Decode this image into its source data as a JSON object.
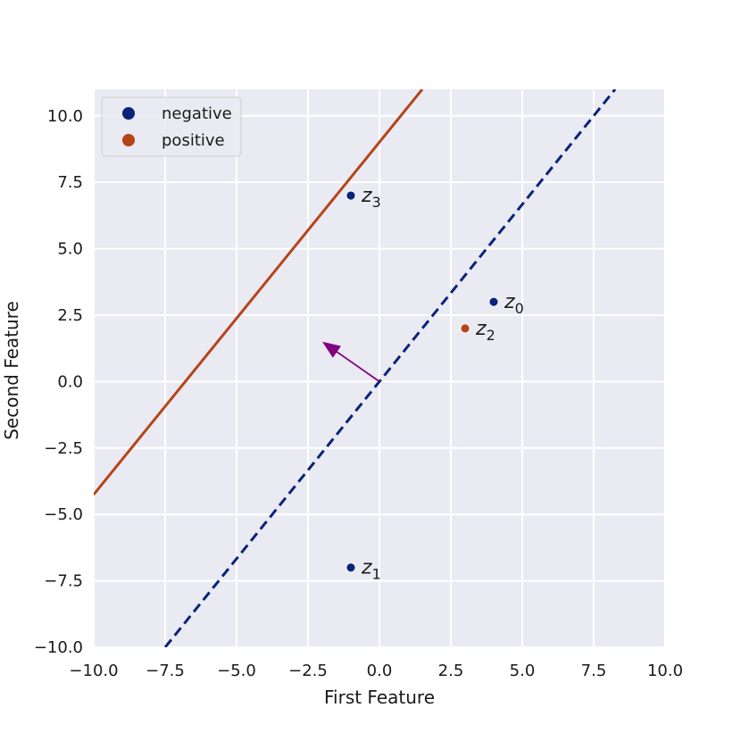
{
  "chart_data": {
    "type": "scatter",
    "title": "",
    "xlabel": "First Feature",
    "ylabel": "Second Feature",
    "xlim": [
      -10,
      10
    ],
    "ylim": [
      -10,
      11
    ],
    "grid": true,
    "legend_position": "top-left",
    "xticks": [
      {
        "v": -10,
        "label": "−10.0"
      },
      {
        "v": -7.5,
        "label": "−7.5"
      },
      {
        "v": -5,
        "label": "−5.0"
      },
      {
        "v": -2.5,
        "label": "−2.5"
      },
      {
        "v": 0,
        "label": "0.0"
      },
      {
        "v": 2.5,
        "label": "2.5"
      },
      {
        "v": 5,
        "label": "5.0"
      },
      {
        "v": 7.5,
        "label": "7.5"
      },
      {
        "v": 10,
        "label": "10.0"
      }
    ],
    "yticks": [
      {
        "v": -10,
        "label": "−10.0"
      },
      {
        "v": -7.5,
        "label": "−7.5"
      },
      {
        "v": -5,
        "label": "−5.0"
      },
      {
        "v": -2.5,
        "label": "−2.5"
      },
      {
        "v": 0,
        "label": "0.0"
      },
      {
        "v": 2.5,
        "label": "2.5"
      },
      {
        "v": 5,
        "label": "5.0"
      },
      {
        "v": 7.5,
        "label": "7.5"
      },
      {
        "v": 10,
        "label": "10.0"
      }
    ],
    "series": [
      {
        "name": "negative",
        "color": "#0a237a",
        "points": [
          {
            "x": 4,
            "y": 3,
            "base": "z",
            "sub": "0"
          },
          {
            "x": -1,
            "y": -7,
            "base": "z",
            "sub": "1"
          },
          {
            "x": -1,
            "y": 7,
            "base": "z",
            "sub": "3"
          }
        ]
      },
      {
        "name": "positive",
        "color": "#b5441a",
        "points": [
          {
            "x": 3,
            "y": 2,
            "base": "z",
            "sub": "2"
          }
        ]
      }
    ],
    "lines": [
      {
        "style": "solid",
        "color": "#b5441a",
        "points": [
          [
            -10,
            -4.25
          ],
          [
            1.5,
            11
          ]
        ]
      },
      {
        "style": "dashed",
        "color": "#0a237a",
        "points": [
          [
            -7.5,
            -10
          ],
          [
            8.25,
            11
          ]
        ]
      }
    ],
    "arrow": {
      "color": "#800080",
      "from": [
        0,
        0
      ],
      "to": [
        -2,
        1.5
      ]
    }
  }
}
